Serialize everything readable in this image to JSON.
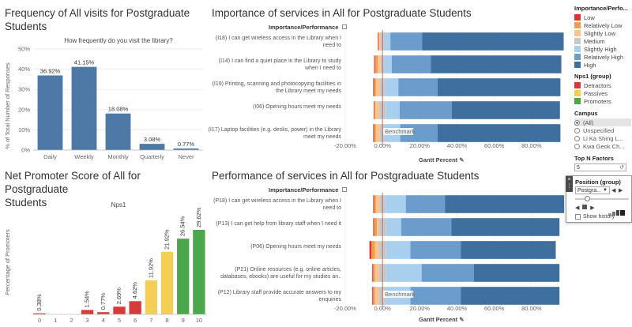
{
  "charts": {
    "frequency": {
      "title_line1": "Frequency of All visits for Postgraduate",
      "title_line2": "Students",
      "subtitle": "How frequently do you visit the library?",
      "ylabel": "% of Total Number of Responses",
      "color": "#4e79a7"
    },
    "importance": {
      "title": "Importance of services in All for Postgraduate Students",
      "header": "Importance/Performance",
      "xlabel": "Gantt Percent",
      "benchmark": "Benchmark"
    },
    "nps": {
      "title_line1": "Net Promoter Score of All for Postgraduate",
      "title_line2": "Students",
      "subtitle": "Nps1",
      "ylabel": "Percentage of Promoters"
    },
    "performance": {
      "title": "Performance of services in All for Postgraduate Students",
      "header": "Importance/Performance",
      "xlabel": "Gantt Percent",
      "benchmark": "Benchmark"
    }
  },
  "chart_data": [
    {
      "type": "bar",
      "categories": [
        "Daily",
        "Weekly",
        "Monthly",
        "Quarterly",
        "Never"
      ],
      "values": [
        36.92,
        41.15,
        18.08,
        3.08,
        0.77
      ],
      "labels": [
        "36.92%",
        "41.15%",
        "18.08%",
        "3.08%",
        "0.77%"
      ],
      "title": "Frequency of All visits for Postgraduate Students",
      "subtitle": "How frequently do you visit the library?",
      "ylabel": "% of Total Number of Responses",
      "ylim": [
        0,
        50
      ],
      "yticks": [
        "0%",
        "10%",
        "20%",
        "30%",
        "40%",
        "50%"
      ]
    },
    {
      "type": "bar",
      "title": "Importance of services in All for Postgraduate Students",
      "xlabel": "Gantt Percent",
      "xlim": [
        -20,
        100
      ],
      "xticks": [
        "-20.00%",
        "0.00%",
        "20.00%",
        "40.00%",
        "60.00%",
        "80.00%"
      ],
      "categories": [
        "(I18) I can get wireless access in the Library when I need to",
        "(I14) I can find a quiet place in the Library to study when I need to",
        "(I19) Printing, scanning and photocopying facilities in the Library meet my needs",
        "(I06) Opening hours meet my needs",
        "(I17) Laptop facilities (e.g. desks, power) in the Library meet my needs"
      ],
      "rows": [
        [
          {
            "s": "Low",
            "v": 0.3
          },
          {
            "s": "Relatively Low",
            "v": 0.5
          },
          {
            "s": "Slightly Low",
            "v": 0.5
          },
          {
            "s": "Medium",
            "v": 2.5
          },
          {
            "s": "Slightly High",
            "v": 3
          },
          {
            "s": "Relatively High",
            "v": 17
          },
          {
            "s": "High",
            "v": 76
          }
        ],
        [
          {
            "s": "Low",
            "v": 0.5
          },
          {
            "s": "Relatively Low",
            "v": 1.5
          },
          {
            "s": "Slightly Low",
            "v": 1.5
          },
          {
            "s": "Medium",
            "v": 2
          },
          {
            "s": "Slightly High",
            "v": 4
          },
          {
            "s": "Relatively High",
            "v": 21
          },
          {
            "s": "High",
            "v": 70
          }
        ],
        [
          {
            "s": "Low",
            "v": 0.5
          },
          {
            "s": "Relatively Low",
            "v": 1
          },
          {
            "s": "Slightly Low",
            "v": 2
          },
          {
            "s": "Medium",
            "v": 3
          },
          {
            "s": "Slightly High",
            "v": 7
          },
          {
            "s": "Relatively High",
            "v": 21
          },
          {
            "s": "High",
            "v": 66
          }
        ],
        [
          {
            "s": "Low",
            "v": 0.3
          },
          {
            "s": "Relatively Low",
            "v": 0.7
          },
          {
            "s": "Slightly Low",
            "v": 2
          },
          {
            "s": "Medium",
            "v": 3.5
          },
          {
            "s": "Slightly High",
            "v": 7.5
          },
          {
            "s": "Relatively High",
            "v": 28
          },
          {
            "s": "High",
            "v": 58
          }
        ],
        [
          {
            "s": "Low",
            "v": 0.5
          },
          {
            "s": "Relatively Low",
            "v": 1
          },
          {
            "s": "Slightly Low",
            "v": 2
          },
          {
            "s": "Medium",
            "v": 3
          },
          {
            "s": "Slightly High",
            "v": 8
          },
          {
            "s": "Relatively High",
            "v": 20
          },
          {
            "s": "High",
            "v": 66
          }
        ]
      ],
      "benchmark_x": 0,
      "benchmark_label": "Benchmark"
    },
    {
      "type": "bar",
      "title": "Net Promoter Score of All for Postgraduate Students",
      "subtitle": "Nps1",
      "ylabel": "Percentage of Promoters",
      "categories": [
        "0",
        "1",
        "2",
        "3",
        "4",
        "5",
        "6",
        "7",
        "8",
        "9",
        "10"
      ],
      "values": [
        0.38,
        0,
        0,
        1.54,
        0.77,
        2.69,
        4.62,
        11.92,
        21.92,
        26.54,
        29.62
      ],
      "labels": [
        "0.38%",
        "",
        "",
        "1.54%",
        "0.77%",
        "2.69%",
        "4.62%",
        "11.92%",
        "21.92%",
        "26.54%",
        "29.62%"
      ],
      "groups": [
        "Detractors",
        "Detractors",
        "Detractors",
        "Detractors",
        "Detractors",
        "Detractors",
        "Detractors",
        "Passives",
        "Passives",
        "Promoters",
        "Promoters"
      ],
      "ylim": [
        0,
        36
      ]
    },
    {
      "type": "bar",
      "title": "Performance of services in All for Postgraduate Students",
      "xlabel": "Gantt Percent",
      "xlim": [
        -20,
        100
      ],
      "xticks": [
        "-20.00%",
        "0.00%",
        "20.00%",
        "40.00%",
        "60.00%",
        "80.00%"
      ],
      "categories": [
        "(P18) I can get wireless access in the Library when I need to",
        "(P13) I can get help from library staff when I need it",
        "(P06) Opening hours meet my needs",
        "(P21) Online resources (e.g. online articles, databases, ebooks) are useful for my studies an..",
        "(P12) Library staff provide accurate answers to my enquiries"
      ],
      "rows": [
        [
          {
            "s": "Low",
            "v": 0.5
          },
          {
            "s": "Relatively Low",
            "v": 1
          },
          {
            "s": "Slightly Low",
            "v": 2
          },
          {
            "s": "Medium",
            "v": 3
          },
          {
            "s": "Slightly High",
            "v": 11
          },
          {
            "s": "Relatively High",
            "v": 21
          },
          {
            "s": "High",
            "v": 64
          }
        ],
        [
          {
            "s": "Low",
            "v": 0.5
          },
          {
            "s": "Relatively Low",
            "v": 1.5
          },
          {
            "s": "Slightly Low",
            "v": 1
          },
          {
            "s": "Medium",
            "v": 4
          },
          {
            "s": "Slightly High",
            "v": 8
          },
          {
            "s": "Relatively High",
            "v": 27
          },
          {
            "s": "High",
            "v": 58
          }
        ],
        [
          {
            "s": "Low",
            "v": 1
          },
          {
            "s": "Relatively Low",
            "v": 2
          },
          {
            "s": "Slightly Low",
            "v": 2
          },
          {
            "s": "Medium",
            "v": 4
          },
          {
            "s": "Slightly High",
            "v": 13
          },
          {
            "s": "Relatively High",
            "v": 27
          },
          {
            "s": "High",
            "v": 51
          }
        ],
        [
          {
            "s": "Low",
            "v": 0.5
          },
          {
            "s": "Relatively Low",
            "v": 1
          },
          {
            "s": "Slightly Low",
            "v": 2
          },
          {
            "s": "Medium",
            "v": 4
          },
          {
            "s": "Slightly High",
            "v": 19
          },
          {
            "s": "Relatively High",
            "v": 28
          },
          {
            "s": "High",
            "v": 46
          }
        ],
        [
          {
            "s": "Low",
            "v": 0.5
          },
          {
            "s": "Relatively Low",
            "v": 1
          },
          {
            "s": "Slightly Low",
            "v": 2
          },
          {
            "s": "Medium",
            "v": 4
          },
          {
            "s": "Slightly High",
            "v": 13
          },
          {
            "s": "Relatively High",
            "v": 27
          },
          {
            "s": "High",
            "v": 53
          }
        ]
      ],
      "benchmark_x": 0,
      "benchmark_label": "Benchmark"
    }
  ],
  "colors": {
    "Low": "#e03131",
    "Relatively Low": "#f39c4a",
    "Slightly Low": "#f7c58f",
    "Medium": "#c8c8c8",
    "Slightly High": "#a9cfee",
    "Relatively High": "#6b9ccc",
    "High": "#3f6f9f",
    "Detractors": "#d63a3a",
    "Passives": "#f5cf55",
    "Promoters": "#4ca64c"
  },
  "legend": {
    "imp_title": "Importance/Perfo...",
    "imp_items": [
      "Low",
      "Relatively Low",
      "Slightly Low",
      "Medium",
      "Slightly High",
      "Relatively High",
      "High"
    ],
    "nps_title": "Nps1 (group)",
    "nps_items": [
      "Detractors",
      "Passives",
      "Promoters"
    ]
  },
  "filters": {
    "campus_title": "Campus",
    "campus_options": [
      "(All)",
      "Unspecified",
      "Li Ka Shing L...",
      "Kwa Geok Ch..."
    ],
    "campus_selected": "(All)",
    "topn_title": "Top N Factors",
    "topn_value": "5",
    "position_title": "Position (group)",
    "position_value": "Postgra...",
    "show_history": "Show history"
  }
}
